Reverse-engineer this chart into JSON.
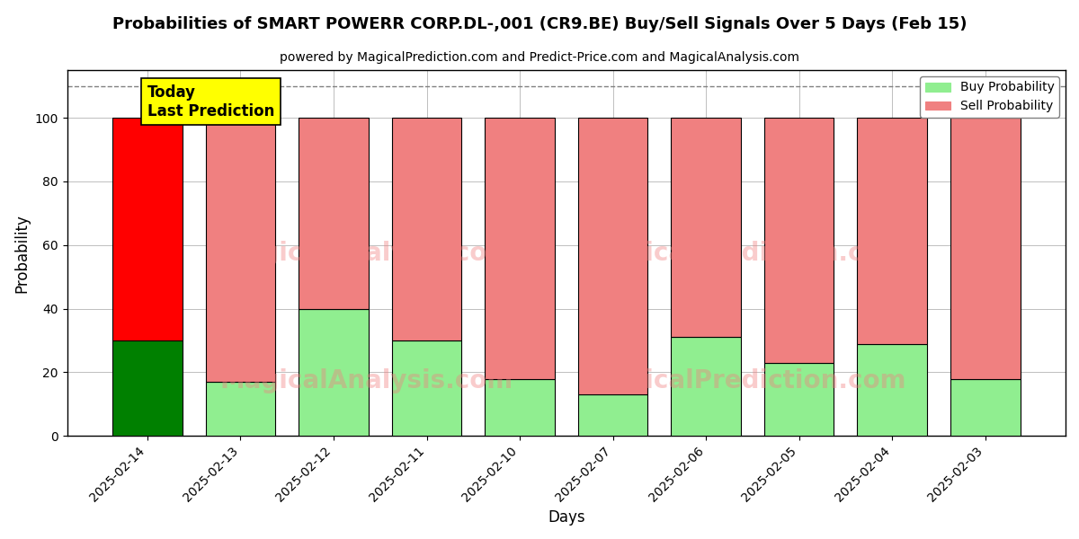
{
  "title": "Probabilities of SMART POWERR CORP.DL-,001 (CR9.BE) Buy/Sell Signals Over 5 Days (Feb 15)",
  "subtitle": "powered by MagicalPrediction.com and Predict-Price.com and MagicalAnalysis.com",
  "xlabel": "Days",
  "ylabel": "Probability",
  "categories": [
    "2025-02-14",
    "2025-02-13",
    "2025-02-12",
    "2025-02-11",
    "2025-02-10",
    "2025-02-07",
    "2025-02-06",
    "2025-02-05",
    "2025-02-04",
    "2025-02-03"
  ],
  "buy_values": [
    30,
    17,
    40,
    30,
    18,
    13,
    31,
    23,
    29,
    18
  ],
  "sell_values": [
    70,
    83,
    60,
    70,
    82,
    87,
    69,
    77,
    71,
    82
  ],
  "buy_colors": [
    "#008000",
    "#90EE90",
    "#90EE90",
    "#90EE90",
    "#90EE90",
    "#90EE90",
    "#90EE90",
    "#90EE90",
    "#90EE90",
    "#90EE90"
  ],
  "sell_colors": [
    "#FF0000",
    "#F08080",
    "#F08080",
    "#F08080",
    "#F08080",
    "#F08080",
    "#F08080",
    "#F08080",
    "#F08080",
    "#F08080"
  ],
  "today_label": "Today\nLast Prediction",
  "today_bg": "#FFFF00",
  "dashed_line_y": 110,
  "ylim": [
    0,
    115
  ],
  "yticks": [
    0,
    20,
    40,
    60,
    80,
    100
  ],
  "legend_buy_color": "#90EE90",
  "legend_sell_color": "#F08080",
  "bar_edgecolor": "#000000",
  "bar_linewidth": 0.8,
  "figsize": [
    12,
    6
  ],
  "dpi": 100
}
